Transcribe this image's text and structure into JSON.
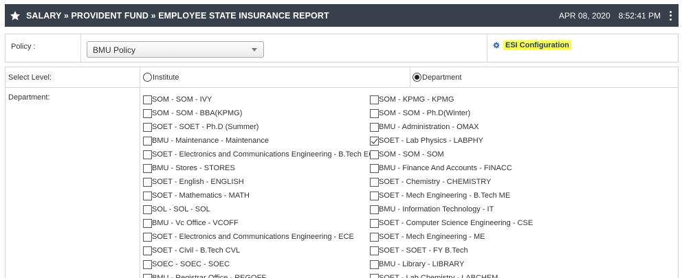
{
  "header": {
    "title": "SALARY » PROVIDENT FUND » EMPLOYEE STATE INSURANCE REPORT",
    "date": "APR 08, 2020",
    "time": "8:52:41 PM",
    "icons": {
      "star": "star-icon",
      "menu": "kebab-menu-icon"
    },
    "bg_color": "#38404b"
  },
  "policy": {
    "label": "Policy :",
    "selected": "BMU Policy",
    "esi_link": "ESI Configuration",
    "esi_icon": "gear-icon",
    "highlight_color": "#ffff3a"
  },
  "level": {
    "label": "Select Level:",
    "options": [
      {
        "label": "Institute",
        "selected": false
      },
      {
        "label": "Department",
        "selected": true
      }
    ]
  },
  "department": {
    "label": "Department:",
    "col1": [
      {
        "label": "SOM - SOM - IVY",
        "checked": false
      },
      {
        "label": "SOM - SOM - BBA(KPMG)",
        "checked": false
      },
      {
        "label": "SOET - SOET - Ph.D (Summer)",
        "checked": false
      },
      {
        "label": "BMU - Maintenance - Maintenance",
        "checked": false
      },
      {
        "label": "SOET - Electronics and Communications Engineering - B.Tech ECE",
        "checked": false
      },
      {
        "label": "BMU - Stores - STORES",
        "checked": false
      },
      {
        "label": "SOET - English - ENGLISH",
        "checked": false
      },
      {
        "label": "SOET - Mathematics - MATH",
        "checked": false
      },
      {
        "label": "SOL - SOL - SOL",
        "checked": false
      },
      {
        "label": "BMU - Vc Office - VCOFF",
        "checked": false
      },
      {
        "label": "SOET - Electronics and Communications Engineering - ECE",
        "checked": false
      },
      {
        "label": "SOET - Civil - B.Tech CVL",
        "checked": false
      },
      {
        "label": "SOEC - SOEC - SOEC",
        "checked": false
      },
      {
        "label": "BMU - Registrar Office - REGOFF",
        "checked": false
      }
    ],
    "col2": [
      {
        "label": "SOM - KPMG - KPMG",
        "checked": false
      },
      {
        "label": "SOM - SOM - Ph.D(Winter)",
        "checked": false
      },
      {
        "label": "BMU - Administration - OMAX",
        "checked": false
      },
      {
        "label": "SOET - Lab Physics - LABPHY",
        "checked": true
      },
      {
        "label": "SOM - SOM - SOM",
        "checked": false
      },
      {
        "label": "BMU - Finance And Accounts - FINACC",
        "checked": false
      },
      {
        "label": "SOET - Chemistry - CHEMISTRY",
        "checked": false
      },
      {
        "label": "SOET - Mech Engineering - B.Tech ME",
        "checked": false
      },
      {
        "label": "BMU - Information Technology - IT",
        "checked": false
      },
      {
        "label": "SOET - Computer Science Engineering - CSE",
        "checked": false
      },
      {
        "label": "SOET - Mech Engineering - ME",
        "checked": false
      },
      {
        "label": "SOET - SOET - FY B.Tech",
        "checked": false
      },
      {
        "label": "BMU - Library - LIBRARY",
        "checked": false
      },
      {
        "label": "SOET - Lab Chemistry - LABCHEM",
        "checked": false
      }
    ]
  }
}
